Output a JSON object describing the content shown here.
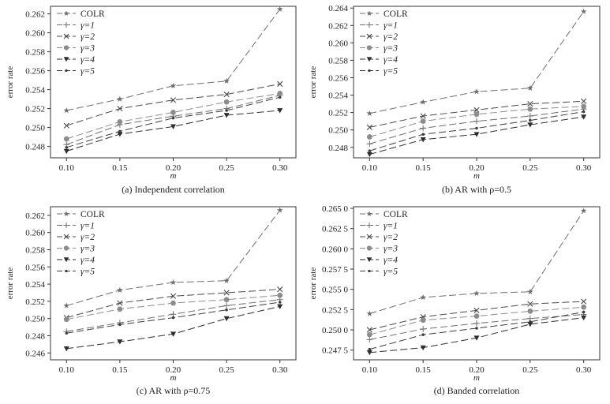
{
  "chart_data": [
    {
      "type": "line",
      "panel_id": "a",
      "caption": "(a) Independent correlation",
      "xlabel": "m",
      "ylabel": "error rate",
      "x": [
        0.1,
        0.15,
        0.2,
        0.25,
        0.3
      ],
      "x_tick_labels": [
        "0.10",
        "0.15",
        "0.20",
        "0.25",
        "0.30"
      ],
      "ylim": [
        0.2468,
        0.2628
      ],
      "y_ticks": [
        0.248,
        0.25,
        0.252,
        0.254,
        0.256,
        0.258,
        0.26,
        0.262
      ],
      "y_tick_labels": [
        "0.248",
        "0.250",
        "0.252",
        "0.254",
        "0.256",
        "0.258",
        "0.260",
        "0.262"
      ],
      "legend_position": "top-left",
      "series": [
        {
          "name": "COLR",
          "values": [
            0.2518,
            0.253,
            0.2544,
            0.2549,
            0.2625
          ]
        },
        {
          "name": "γ=1",
          "values": [
            0.2482,
            0.2503,
            0.2512,
            0.252,
            0.2534
          ]
        },
        {
          "name": "γ=2",
          "values": [
            0.2502,
            0.252,
            0.2529,
            0.2535,
            0.2546
          ]
        },
        {
          "name": "γ=3",
          "values": [
            0.2488,
            0.2506,
            0.2516,
            0.2527,
            0.2536
          ]
        },
        {
          "name": "γ=4",
          "values": [
            0.2475,
            0.2493,
            0.2501,
            0.2513,
            0.2518
          ]
        },
        {
          "name": "γ=5",
          "values": [
            0.2479,
            0.2496,
            0.251,
            0.2518,
            0.2532
          ]
        }
      ]
    },
    {
      "type": "line",
      "panel_id": "b",
      "caption": "(b) AR with ρ=0.5",
      "xlabel": "m",
      "ylabel": "error rate",
      "x": [
        0.1,
        0.15,
        0.2,
        0.25,
        0.3
      ],
      "x_tick_labels": [
        "0.10",
        "0.15",
        "0.20",
        "0.25",
        "0.30"
      ],
      "ylim": [
        0.2468,
        0.2642
      ],
      "y_ticks": [
        0.248,
        0.25,
        0.252,
        0.254,
        0.256,
        0.258,
        0.26,
        0.262,
        0.264
      ],
      "y_tick_labels": [
        "0.248",
        "0.250",
        "0.252",
        "0.254",
        "0.256",
        "0.258",
        "0.260",
        "0.262",
        "0.264"
      ],
      "legend_position": "top-left",
      "series": [
        {
          "name": "COLR",
          "values": [
            0.2519,
            0.2532,
            0.2544,
            0.2548,
            0.2636
          ]
        },
        {
          "name": "γ=1",
          "values": [
            0.2484,
            0.2502,
            0.251,
            0.2516,
            0.2524
          ]
        },
        {
          "name": "γ=2",
          "values": [
            0.2503,
            0.2516,
            0.2523,
            0.253,
            0.2533
          ]
        },
        {
          "name": "γ=3",
          "values": [
            0.2492,
            0.251,
            0.2518,
            0.2524,
            0.2527
          ]
        },
        {
          "name": "γ=4",
          "values": [
            0.2472,
            0.2489,
            0.2495,
            0.2506,
            0.2515
          ]
        },
        {
          "name": "γ=5",
          "values": [
            0.2476,
            0.2495,
            0.2502,
            0.2511,
            0.2521
          ]
        }
      ]
    },
    {
      "type": "line",
      "panel_id": "c",
      "caption": "(c) AR with ρ=0.75",
      "xlabel": "m",
      "ylabel": "error rate",
      "x": [
        0.1,
        0.15,
        0.2,
        0.25,
        0.3
      ],
      "x_tick_labels": [
        "0.10",
        "0.15",
        "0.20",
        "0.25",
        "0.30"
      ],
      "ylim": [
        0.2452,
        0.263
      ],
      "y_ticks": [
        0.246,
        0.248,
        0.25,
        0.252,
        0.254,
        0.256,
        0.258,
        0.26,
        0.262
      ],
      "y_tick_labels": [
        "0.246",
        "0.248",
        "0.250",
        "0.252",
        "0.254",
        "0.256",
        "0.258",
        "0.260",
        "0.262"
      ],
      "legend_position": "top-left",
      "series": [
        {
          "name": "COLR",
          "values": [
            0.2515,
            0.2533,
            0.2542,
            0.2544,
            0.2626
          ]
        },
        {
          "name": "γ=1",
          "values": [
            0.2485,
            0.2495,
            0.2505,
            0.2515,
            0.2522
          ]
        },
        {
          "name": "γ=2",
          "values": [
            0.2501,
            0.2518,
            0.2526,
            0.253,
            0.2534
          ]
        },
        {
          "name": "γ=3",
          "values": [
            0.2499,
            0.2511,
            0.2518,
            0.2522,
            0.2527
          ]
        },
        {
          "name": "γ=4",
          "values": [
            0.2465,
            0.2473,
            0.2482,
            0.25,
            0.2514
          ]
        },
        {
          "name": "γ=5",
          "values": [
            0.2483,
            0.2493,
            0.2501,
            0.251,
            0.2519
          ]
        }
      ]
    },
    {
      "type": "line",
      "panel_id": "d",
      "caption": "(d) Banded correlation",
      "xlabel": "m",
      "ylabel": "error rate",
      "x": [
        0.1,
        0.15,
        0.2,
        0.25,
        0.3
      ],
      "x_tick_labels": [
        "0.10",
        "0.15",
        "0.20",
        "0.25",
        "0.30"
      ],
      "ylim": [
        0.2463,
        0.2652
      ],
      "y_ticks": [
        0.2475,
        0.25,
        0.2525,
        0.255,
        0.2575,
        0.26,
        0.2625,
        0.265
      ],
      "y_tick_labels": [
        "0.247 5",
        "0.250 0",
        "0.252 5",
        "0.255 0",
        "0.257 5",
        "0.260 0",
        "0.262 5",
        "0.265 0"
      ],
      "legend_position": "top-left",
      "series": [
        {
          "name": "COLR",
          "values": [
            0.252,
            0.254,
            0.2545,
            0.2547,
            0.2647
          ]
        },
        {
          "name": "γ=1",
          "values": [
            0.2488,
            0.2501,
            0.2508,
            0.2514,
            0.2519
          ]
        },
        {
          "name": "γ=2",
          "values": [
            0.25,
            0.2516,
            0.2524,
            0.2532,
            0.2535
          ]
        },
        {
          "name": "γ=3",
          "values": [
            0.2494,
            0.2512,
            0.2517,
            0.2523,
            0.2528
          ]
        },
        {
          "name": "γ=4",
          "values": [
            0.2472,
            0.2478,
            0.249,
            0.2507,
            0.2515
          ]
        },
        {
          "name": "γ=5",
          "values": [
            0.2476,
            0.2494,
            0.2502,
            0.251,
            0.2522
          ]
        }
      ]
    }
  ],
  "series_styles": [
    {
      "marker": "star",
      "color": "#6e6e6e"
    },
    {
      "marker": "plus",
      "color": "#6e6e6e"
    },
    {
      "marker": "x",
      "color": "#4a4a4a"
    },
    {
      "marker": "circle",
      "color": "#8c8c8c"
    },
    {
      "marker": "triangle-down",
      "color": "#2e2e2e"
    },
    {
      "marker": "dot",
      "color": "#3c3c3c"
    }
  ]
}
